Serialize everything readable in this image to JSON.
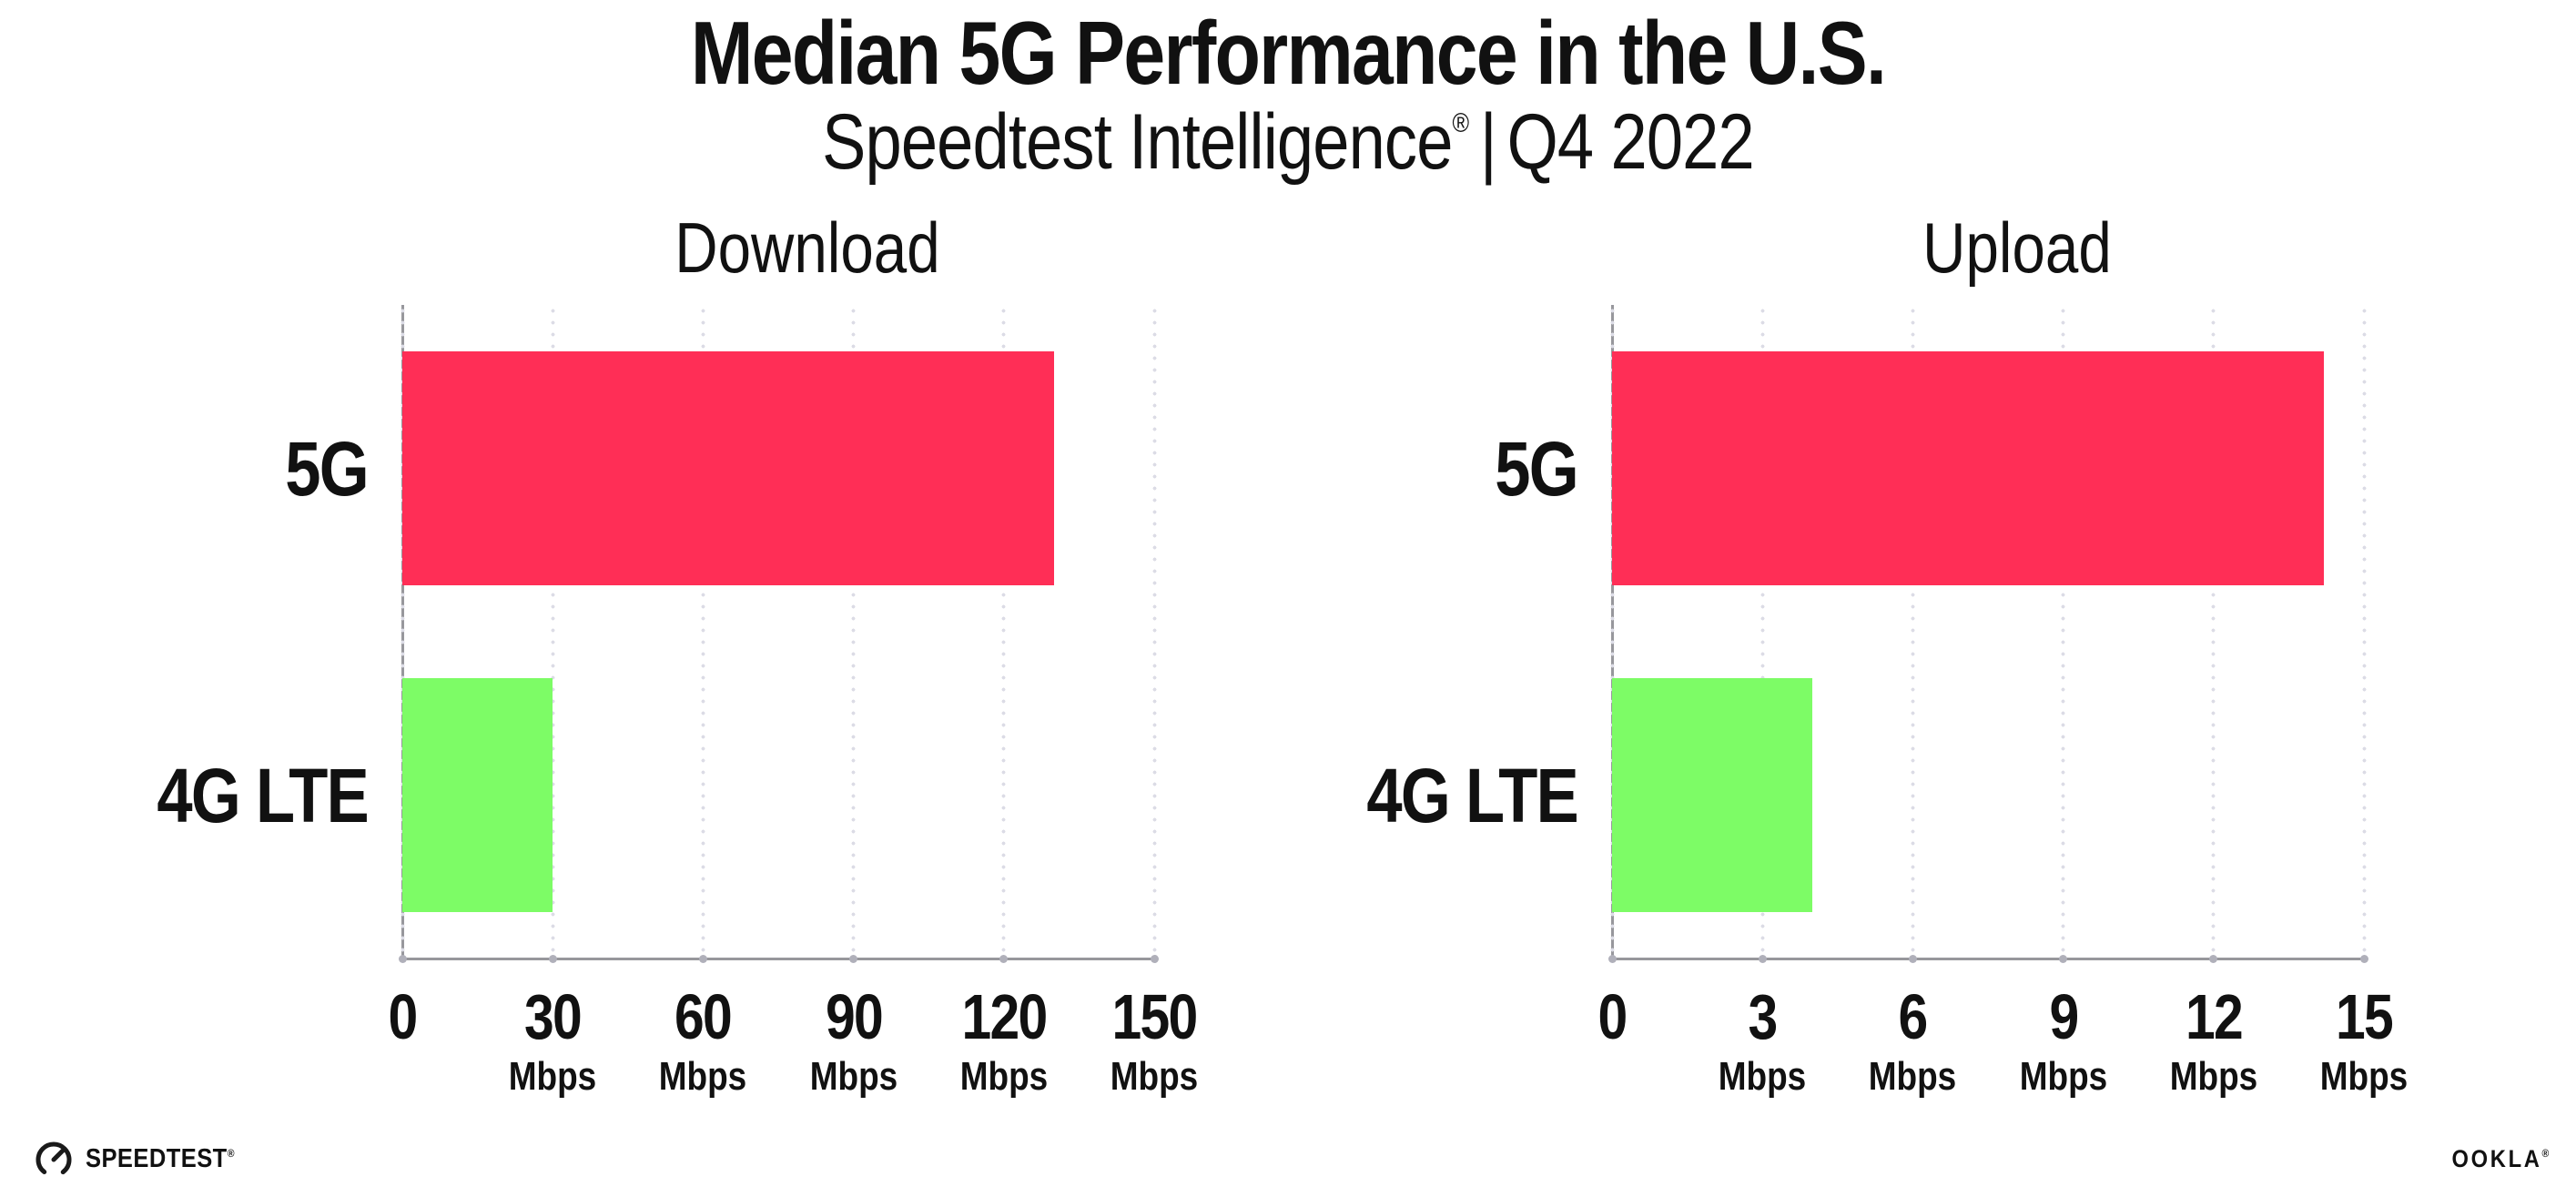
{
  "header": {
    "title": "Median 5G Performance in the U.S.",
    "subtitle_brand": "Speedtest Intelligence",
    "subtitle_reg": "®",
    "subtitle_separator": "|",
    "subtitle_period": "Q4 2022"
  },
  "chart_data": [
    {
      "type": "bar",
      "orientation": "horizontal",
      "title": "Download",
      "categories": [
        "5G",
        "4G LTE"
      ],
      "values": [
        130,
        30
      ],
      "unit": "Mbps",
      "xlim": [
        0,
        150
      ],
      "xticks": [
        0,
        30,
        60,
        90,
        120,
        150
      ],
      "tick_unit": "Mbps",
      "bar_colors": [
        "#FF2E56",
        "#7DFC66"
      ],
      "grid": "dotted-vertical-gridlines",
      "legend": "none"
    },
    {
      "type": "bar",
      "orientation": "horizontal",
      "title": "Upload",
      "categories": [
        "5G",
        "4G LTE"
      ],
      "values": [
        14.2,
        4
      ],
      "unit": "Mbps",
      "xlim": [
        0,
        15
      ],
      "xticks": [
        0,
        3,
        6,
        9,
        12,
        15
      ],
      "tick_unit": "Mbps",
      "bar_colors": [
        "#FF2E56",
        "#7DFC66"
      ],
      "grid": "dotted-vertical-gridlines",
      "legend": "none"
    }
  ],
  "footer": {
    "speedtest_logo_text": "SPEEDTEST",
    "speedtest_reg": "®",
    "gauge_icon": "speedtest-gauge-icon",
    "ookla_logo_text": "OOKLA",
    "ookla_reg": "®"
  },
  "colors": {
    "bar_5g": "#FF2E56",
    "bar_4g_lte": "#7DFC66",
    "axis": "#97979C",
    "grid_dot": "#DCDCE6",
    "axis_tick_dot": "#B0B0BA",
    "text": "#111111",
    "background": "#FFFFFF"
  }
}
